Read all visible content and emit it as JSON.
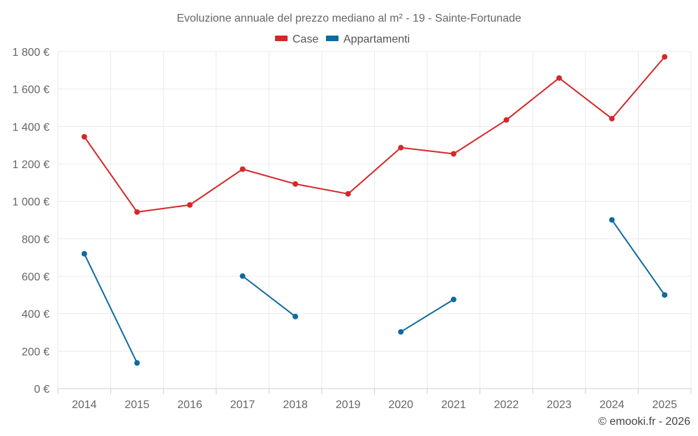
{
  "chart_data": {
    "type": "line",
    "title": "Evoluzione annuale del prezzo mediano al m² - 19 - Sainte-Fortunade",
    "categories": [
      "2014",
      "2015",
      "2016",
      "2017",
      "2018",
      "2019",
      "2020",
      "2021",
      "2022",
      "2023",
      "2024",
      "2025"
    ],
    "yticks": [
      0,
      200,
      400,
      600,
      800,
      1000,
      1200,
      1400,
      1600,
      1800
    ],
    "ytick_labels": [
      "0 €",
      "200 €",
      "400 €",
      "600 €",
      "800 €",
      "1 000 €",
      "1 200 €",
      "1 400 €",
      "1 600 €",
      "1 800 €"
    ],
    "ylim": [
      0,
      1800
    ],
    "grid": true,
    "legend_position": "top-center",
    "series": [
      {
        "name": "Case",
        "color": "#d62728",
        "values": [
          1345,
          943,
          981,
          1172,
          1093,
          1040,
          1287,
          1254,
          1435,
          1659,
          1442,
          1772
        ]
      },
      {
        "name": "Appartamenti",
        "color": "#0f6aa0",
        "values": [
          720,
          137,
          null,
          601,
          385,
          null,
          303,
          476,
          null,
          null,
          901,
          500
        ]
      }
    ]
  },
  "credit": "© emooki.fr - 2026"
}
